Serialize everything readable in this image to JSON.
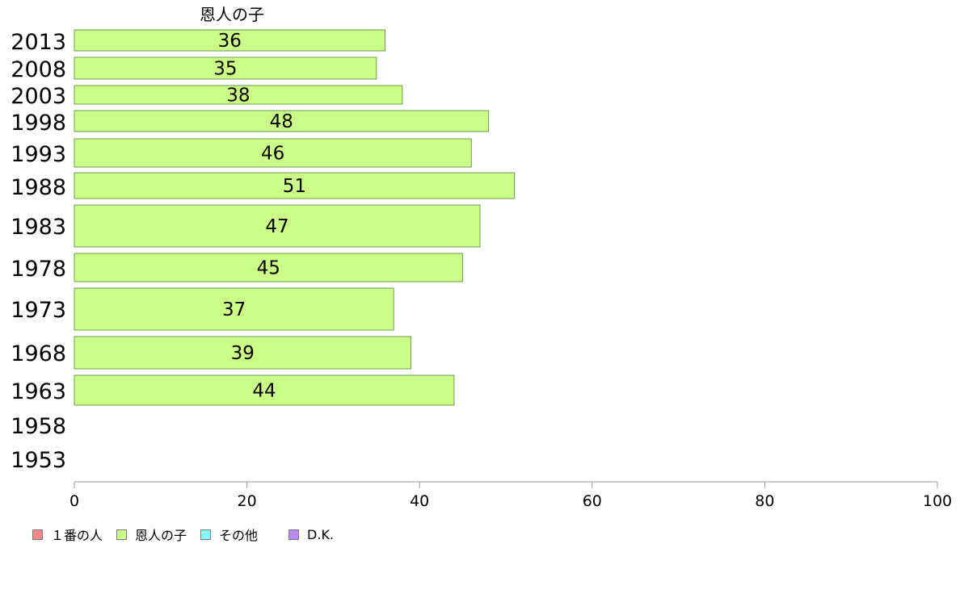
{
  "chart_data": {
    "type": "bar",
    "orientation": "horizontal",
    "title": "恩人の子",
    "categories": [
      "2013",
      "2008",
      "2003",
      "1998",
      "1993",
      "1988",
      "1983",
      "1978",
      "1973",
      "1968",
      "1963",
      "1958",
      "1953"
    ],
    "series": [
      {
        "name": "恩人の子",
        "color": "#ccff88",
        "values": [
          36,
          35,
          38,
          48,
          46,
          51,
          47,
          45,
          37,
          39,
          44,
          null,
          null
        ]
      }
    ],
    "xlim": [
      0,
      100
    ],
    "xticks": [
      0,
      20,
      40,
      60,
      80,
      100
    ],
    "legend_position": "bottom-left",
    "grid": false
  },
  "legend": [
    {
      "label": "１番の人",
      "color": "#ff8888"
    },
    {
      "label": "恩人の子",
      "color": "#ccff88"
    },
    {
      "label": "その他",
      "color": "#88ffff"
    },
    {
      "label": "D.K.",
      "color": "#bb88ff"
    }
  ]
}
